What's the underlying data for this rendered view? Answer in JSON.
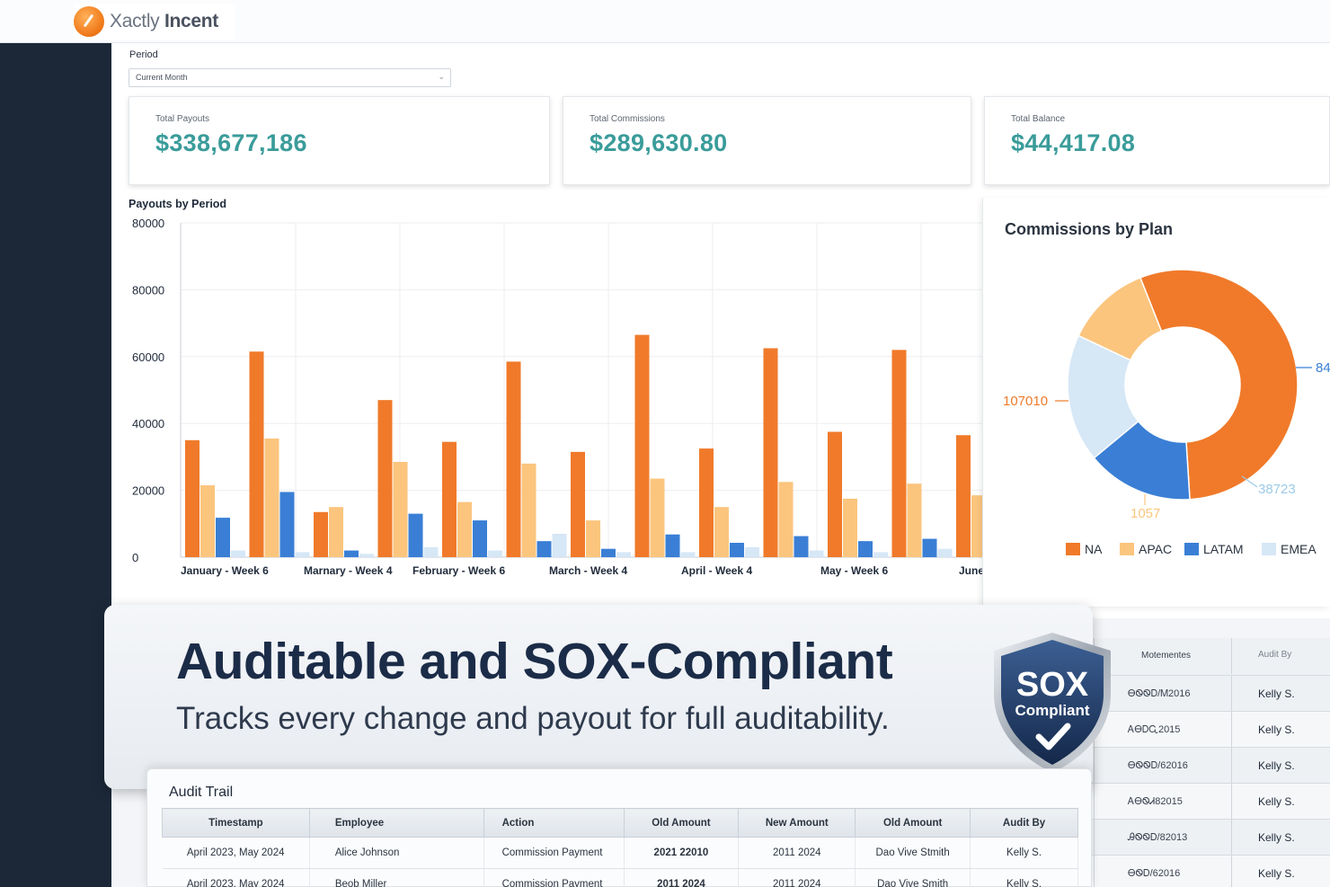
{
  "header": {
    "logo_text_a": "Xactly",
    "logo_text_b": "Incent"
  },
  "filters": {
    "period_label": "Period",
    "period_value": "Current Month"
  },
  "kpis": [
    {
      "label": "Total Payouts",
      "value": "$338,677,186"
    },
    {
      "label": "Total Commissions",
      "value": "$289,630.80"
    },
    {
      "label": "Total Balance",
      "value": "$44,417.08"
    }
  ],
  "colors": {
    "na": "#f07a2a",
    "apac": "#fbc57e",
    "latam": "#3a7fd5",
    "emea": "#d6e7f6",
    "kpi": "#3a9c9a",
    "sidebar": "#1c2838"
  },
  "bar_chart": {
    "type": "bar",
    "title": "Payouts by Period",
    "y_ticks": [
      "80000",
      "80000",
      "60000",
      "40000",
      "20000",
      "0"
    ],
    "ylim": [
      0,
      80000
    ],
    "categories": [
      "January - Week 6",
      "Marnary - Week 4",
      "February - Week 6",
      "March - Week 4",
      "April - Week 4",
      "May - Week 6",
      "June"
    ],
    "groups": [
      [
        35000,
        21500,
        11800,
        2000
      ],
      [
        61500,
        35500,
        19500,
        1500
      ],
      [
        13500,
        15000,
        2000,
        1000
      ],
      [
        47000,
        28500,
        13000,
        3000
      ],
      [
        34500,
        16500,
        11000,
        2000
      ],
      [
        58500,
        28000,
        4800,
        7000
      ],
      [
        31500,
        11000,
        2500,
        1500
      ],
      [
        66500,
        23500,
        6800,
        1500
      ],
      [
        32500,
        15000,
        4300,
        3000
      ],
      [
        62500,
        22500,
        6300,
        2000
      ],
      [
        37500,
        17500,
        4800,
        1500
      ],
      [
        62000,
        22000,
        5500,
        2500
      ],
      [
        36500,
        18500,
        5200,
        1500
      ]
    ],
    "series": [
      {
        "name": "NA"
      },
      {
        "name": "APAC"
      },
      {
        "name": "LATAM"
      },
      {
        "name": "EMEA"
      }
    ]
  },
  "donut_chart": {
    "type": "pie",
    "title": "Commissions by Plan",
    "labels": [
      "107010",
      "84",
      "38723",
      "1057"
    ],
    "legend": [
      "NA",
      "APAC",
      "LATAM",
      "EMEA"
    ],
    "slices": [
      {
        "name": "NA",
        "value": 55
      },
      {
        "name": "LATAM",
        "value": 15
      },
      {
        "name": "EMEA",
        "value": 18
      },
      {
        "name": "APAC",
        "value": 12
      }
    ]
  },
  "banner": {
    "title": "Auditable and SOX-Compliant",
    "subtitle": "Tracks every change and payout for full auditability.",
    "badge_line1": "SOX",
    "badge_line2": "Compliant"
  },
  "side_table": {
    "headers": [
      "Motementes",
      "Audit By"
    ],
    "rows": [
      {
        "date": "ᎾᏫᏫᎠ/Ꮇ2016",
        "by": "Kelly S."
      },
      {
        "date": "ᎪᎾᎠᏩ2015",
        "by": "Kelly S."
      },
      {
        "date": "ᎾᏫᏫᎠ/62016",
        "by": "Kelly S."
      },
      {
        "date": "ᎪᎾᏫᏗ82015",
        "by": "Kelly S."
      },
      {
        "date": "ᎯᏫᏫᎠ/82013",
        "by": "Kelly S."
      },
      {
        "date": "ᎾᏫᎠ/62016",
        "by": "Kelly S."
      }
    ]
  },
  "audit_trail": {
    "title": "Audit Trail",
    "columns": [
      "Timestamp",
      "Employee",
      "Action",
      "Old Amount",
      "New Amount",
      "Old Amount",
      "Audit By"
    ],
    "rows": [
      [
        "April 2023, May 2024",
        "Alice Johnson",
        "Commission Payment",
        "2021 22010",
        "2011 2024",
        "Dao Vive Stmith",
        "Kelly S."
      ],
      [
        "April 2023, May 2024",
        "Beob Miller",
        "Commission Payment",
        "2011 2024",
        "2011 2024",
        "Dao Vive Smith",
        "Kelly S."
      ]
    ]
  }
}
